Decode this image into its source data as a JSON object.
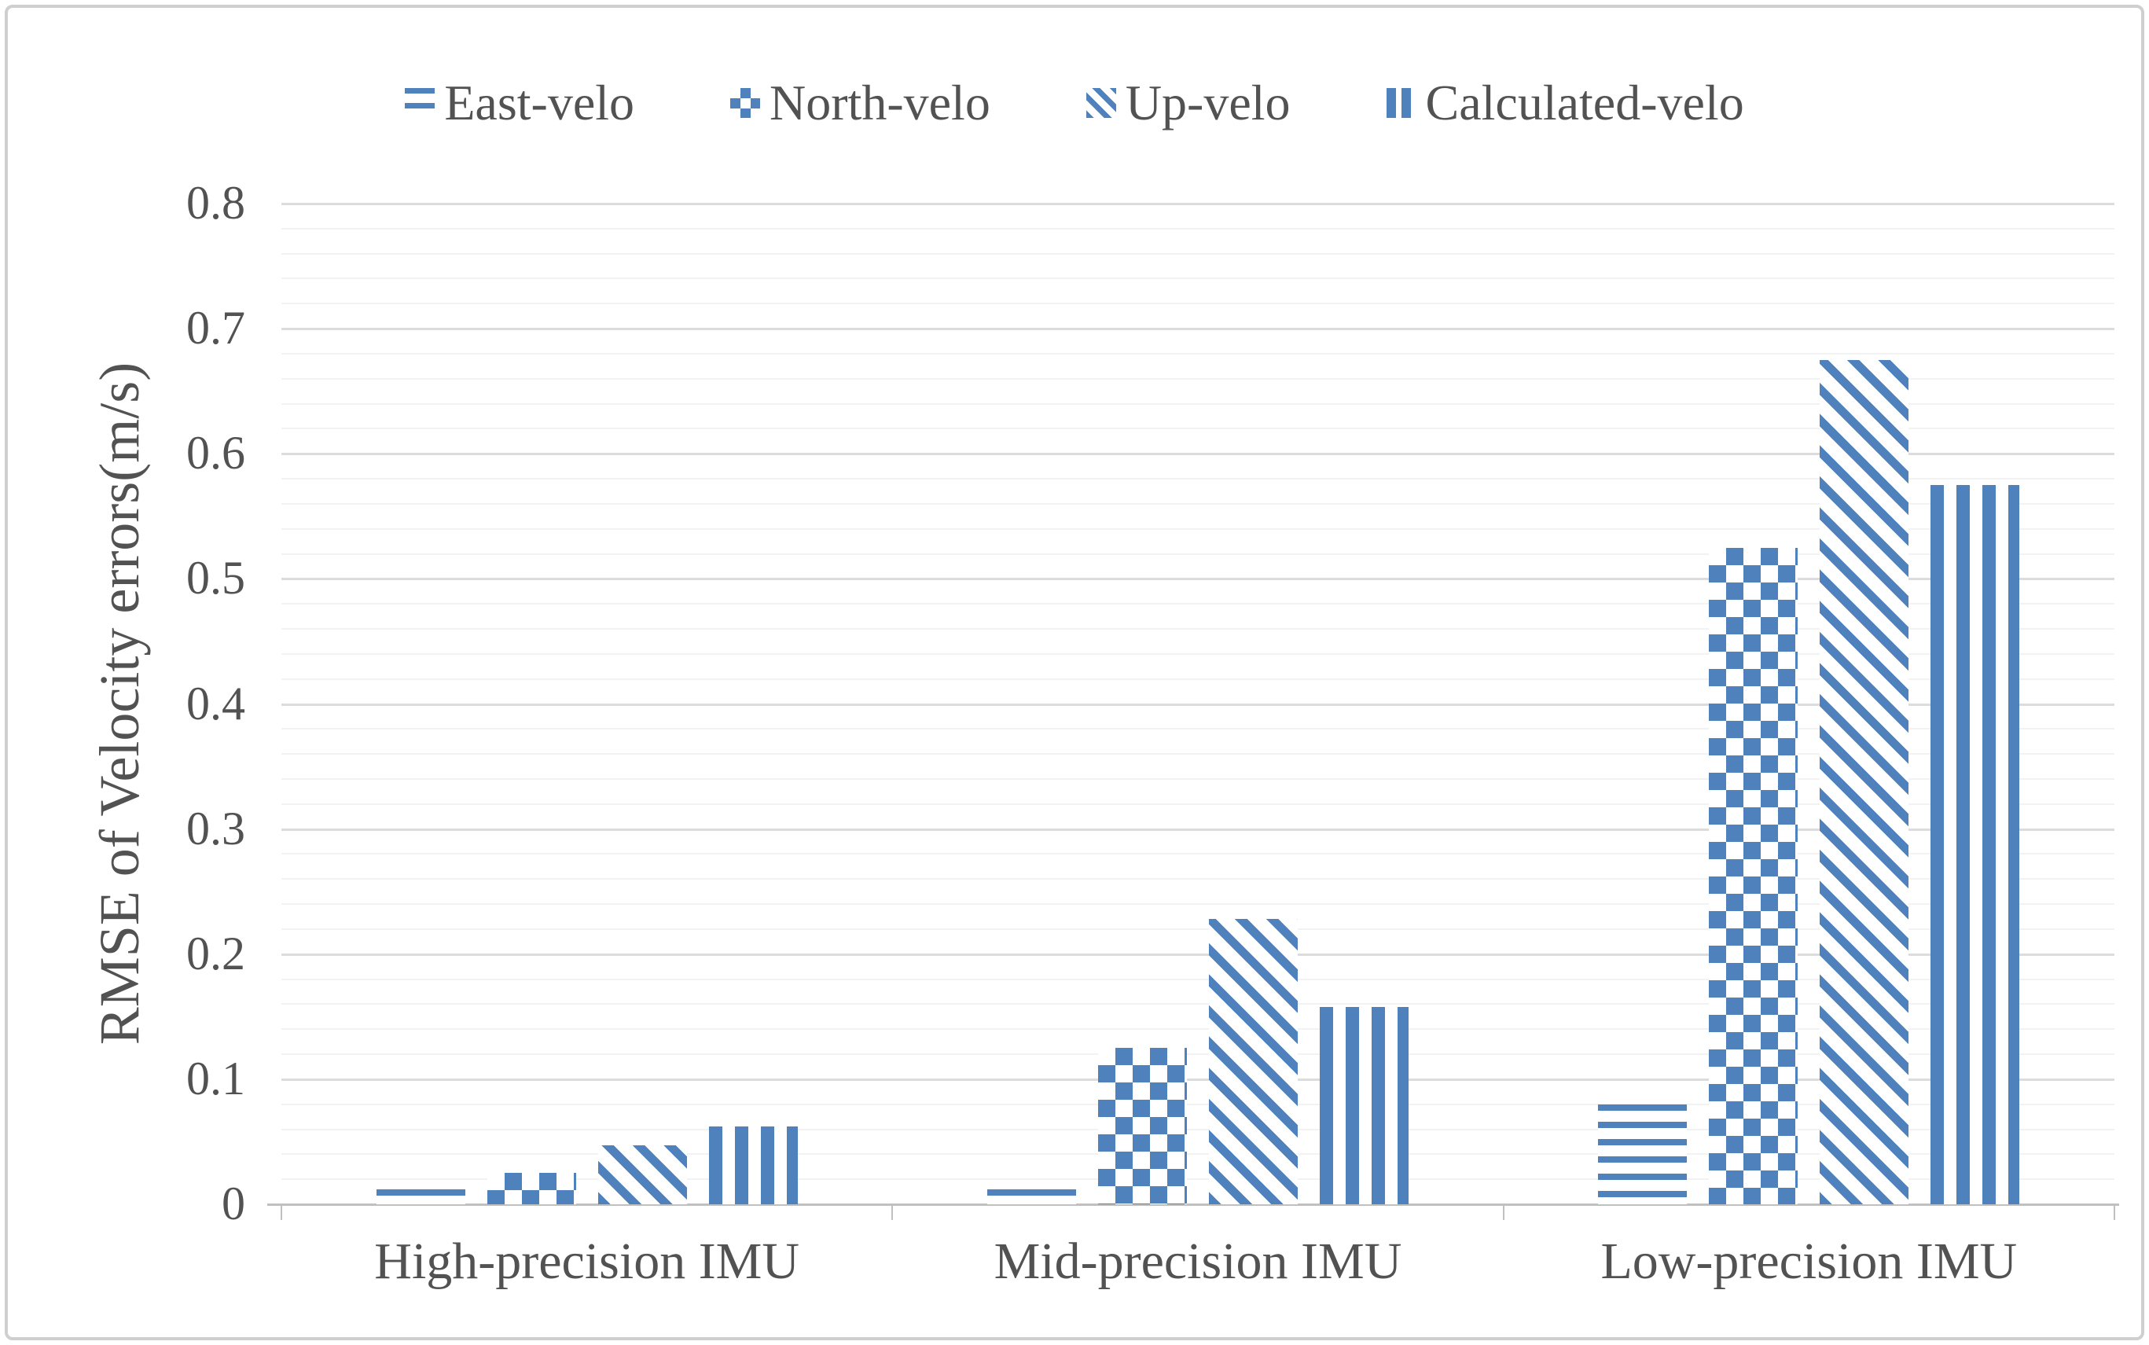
{
  "colors": {
    "bar_blue": "#4F81BD",
    "grid_minor": "#F2F2F2",
    "grid_major": "#DCDCDC",
    "axis_line": "#C0C0C0",
    "text": "#525252",
    "frame_border": "#CFCFCF"
  },
  "legend": {
    "position": "top",
    "items": [
      {
        "label": "East-velo",
        "pattern": "horizontal-stripes"
      },
      {
        "label": "North-velo",
        "pattern": "checkerboard"
      },
      {
        "label": "Up-velo",
        "pattern": "diagonal-stripes"
      },
      {
        "label": "Calculated-velo",
        "pattern": "vertical-stripes"
      }
    ]
  },
  "chart_data": {
    "type": "bar",
    "title": "",
    "xlabel": "",
    "ylabel": "RMSE of Velocity errors(m/s)",
    "categories": [
      "High-precision IMU",
      "Mid-precision IMU",
      "Low-precision IMU"
    ],
    "series": [
      {
        "name": "East-velo",
        "pattern": "horizontal-stripes",
        "values": [
          0.012,
          0.012,
          0.08
        ]
      },
      {
        "name": "North-velo",
        "pattern": "checkerboard",
        "values": [
          0.025,
          0.125,
          0.525
        ]
      },
      {
        "name": "Up-velo",
        "pattern": "diagonal-stripes",
        "values": [
          0.047,
          0.228,
          0.675
        ]
      },
      {
        "name": "Calculated-velo",
        "pattern": "vertical-stripes",
        "values": [
          0.062,
          0.158,
          0.575
        ]
      }
    ],
    "ylim": [
      0,
      0.8
    ],
    "y_major_step": 0.1,
    "y_minor_step": 0.02,
    "y_tick_labels": [
      "0",
      "0.1",
      "0.2",
      "0.3",
      "0.4",
      "0.5",
      "0.6",
      "0.7",
      "0.8"
    ],
    "grid": "horizontal minor+major, on",
    "legend_position": "top center"
  }
}
